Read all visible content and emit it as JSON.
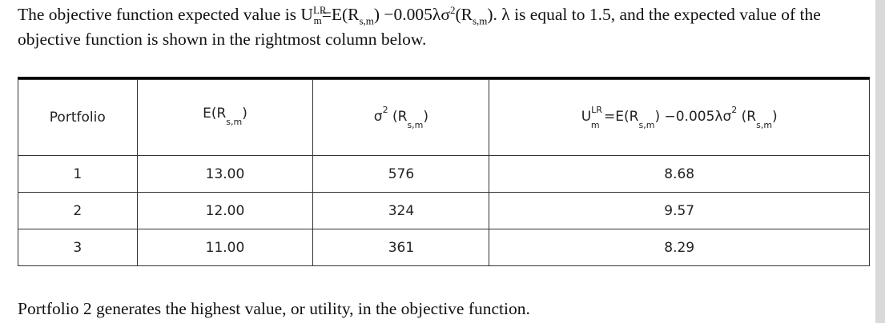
{
  "intro": {
    "part1": "The objective function expected value is U",
    "u_sup": "LR",
    "u_sub": "m",
    "part2": "=E(R",
    "r_sub1": "s,m",
    "part3": ") −0.005λσ",
    "sigma_sup": "2",
    "part4": "(R",
    "r_sub2": "s,m",
    "part5": "). λ is equal to 1.5, and the expected value of the objective function is shown in the rightmost column below."
  },
  "table": {
    "headers": {
      "portfolio": "Portfolio",
      "er": {
        "base": "E(R",
        "sub": "s,m",
        "close": ")"
      },
      "variance": {
        "sigma": "σ",
        "sup": "2",
        "base": "(R",
        "sub": "s,m",
        "close": ")"
      },
      "utility": {
        "u": "U",
        "u_sup": "LR",
        "u_sub": "m",
        "mid": "=E(R",
        "sub1": "s,m",
        "mid2": ") −0.005λσ",
        "sup2": "2",
        "mid3": "(R",
        "sub2": "s,m",
        "close": ")"
      }
    },
    "rows": [
      {
        "portfolio": "1",
        "er": "13.00",
        "variance": "576",
        "utility": "8.68"
      },
      {
        "portfolio": "2",
        "er": "12.00",
        "variance": "324",
        "utility": "9.57"
      },
      {
        "portfolio": "3",
        "er": "11.00",
        "variance": "361",
        "utility": "8.29"
      }
    ]
  },
  "closing": "Portfolio 2 generates the highest value, or utility, in the objective function."
}
